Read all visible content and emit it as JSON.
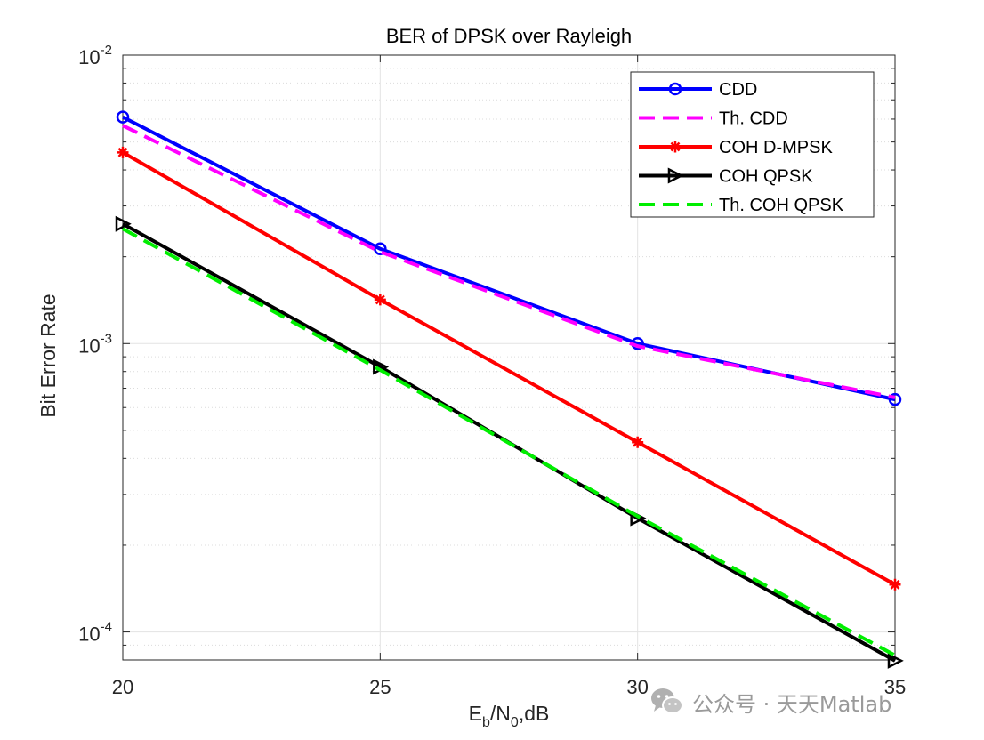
{
  "chart_data": {
    "type": "line",
    "title": "BER of DPSK over Rayleigh",
    "ylabel": "Bit Error Rate",
    "xlabel": {
      "E": "E",
      "b": "b",
      "slash": "/N",
      "zero": "0",
      "unit": ",dB"
    },
    "x": [
      20,
      25,
      30,
      35
    ],
    "xlim": [
      20,
      35
    ],
    "ylim": [
      8e-05,
      0.01
    ],
    "yscale": "log",
    "grid": true,
    "x_ticks": [
      "20",
      "25",
      "30",
      "35"
    ],
    "y_ticks": [
      {
        "value": 0.01,
        "base": "10",
        "exp": "-2"
      },
      {
        "value": 0.001,
        "base": "10",
        "exp": "-3"
      },
      {
        "value": 0.0001,
        "base": "10",
        "exp": "-4"
      }
    ],
    "legend_position": "top-right",
    "series": [
      {
        "name": "CDD",
        "color": "#0000ff",
        "style": "solid",
        "marker": "circle",
        "values": [
          0.0061,
          0.00213,
          0.001,
          0.00064
        ]
      },
      {
        "name": "Th. CDD",
        "color": "#ff00ff",
        "style": "dashed",
        "marker": "none",
        "values": [
          0.0057,
          0.00208,
          0.00098,
          0.00065
        ]
      },
      {
        "name": "COH D-MPSK",
        "color": "#ff0000",
        "style": "solid",
        "marker": "star",
        "values": [
          0.0046,
          0.00142,
          0.000455,
          0.000146
        ]
      },
      {
        "name": "COH QPSK",
        "color": "#000000",
        "style": "solid",
        "marker": "triangle-right",
        "values": [
          0.0026,
          0.00083,
          0.000248,
          7.95e-05
        ]
      },
      {
        "name": "Th. COH QPSK",
        "color": "#00ee00",
        "style": "dashed",
        "marker": "none",
        "values": [
          0.0025,
          0.00081,
          0.000252,
          8.3e-05
        ]
      }
    ]
  },
  "watermark": {
    "text": "公众号 · 天天Matlab",
    "icon": "wechat-icon"
  }
}
